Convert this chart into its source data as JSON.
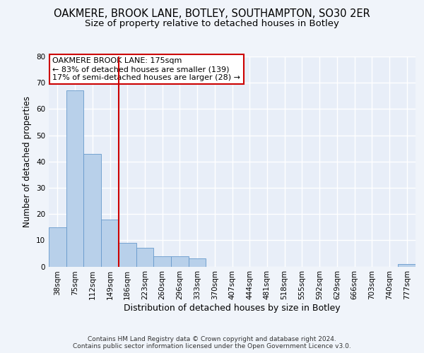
{
  "title1": "OAKMERE, BROOK LANE, BOTLEY, SOUTHAMPTON, SO30 2ER",
  "title2": "Size of property relative to detached houses in Botley",
  "xlabel": "Distribution of detached houses by size in Botley",
  "ylabel": "Number of detached properties",
  "categories": [
    "38sqm",
    "75sqm",
    "112sqm",
    "149sqm",
    "186sqm",
    "223sqm",
    "260sqm",
    "296sqm",
    "333sqm",
    "370sqm",
    "407sqm",
    "444sqm",
    "481sqm",
    "518sqm",
    "555sqm",
    "592sqm",
    "629sqm",
    "666sqm",
    "703sqm",
    "740sqm",
    "777sqm"
  ],
  "values": [
    15,
    67,
    43,
    18,
    9,
    7,
    4,
    4,
    3,
    0,
    0,
    0,
    0,
    0,
    0,
    0,
    0,
    0,
    0,
    0,
    1
  ],
  "bar_color": "#b8d0ea",
  "bar_edge_color": "#6699cc",
  "red_line_x": 3.5,
  "annotation_line1": "OAKMERE BROOK LANE: 175sqm",
  "annotation_line2": "← 83% of detached houses are smaller (139)",
  "annotation_line3": "17% of semi-detached houses are larger (28) →",
  "annotation_box_color": "#ffffff",
  "annotation_box_edge": "#cc0000",
  "red_line_color": "#cc0000",
  "ylim": [
    0,
    80
  ],
  "yticks": [
    0,
    10,
    20,
    30,
    40,
    50,
    60,
    70,
    80
  ],
  "footer": "Contains HM Land Registry data © Crown copyright and database right 2024.\nContains public sector information licensed under the Open Government Licence v3.0.",
  "fig_bg_color": "#f0f4fa",
  "plot_bg_color": "#e8eef8",
  "grid_color": "#ffffff",
  "title1_fontsize": 10.5,
  "title2_fontsize": 9.5,
  "xlabel_fontsize": 9,
  "ylabel_fontsize": 8.5,
  "annotation_fontsize": 8,
  "tick_fontsize": 7.5,
  "footer_fontsize": 6.5
}
